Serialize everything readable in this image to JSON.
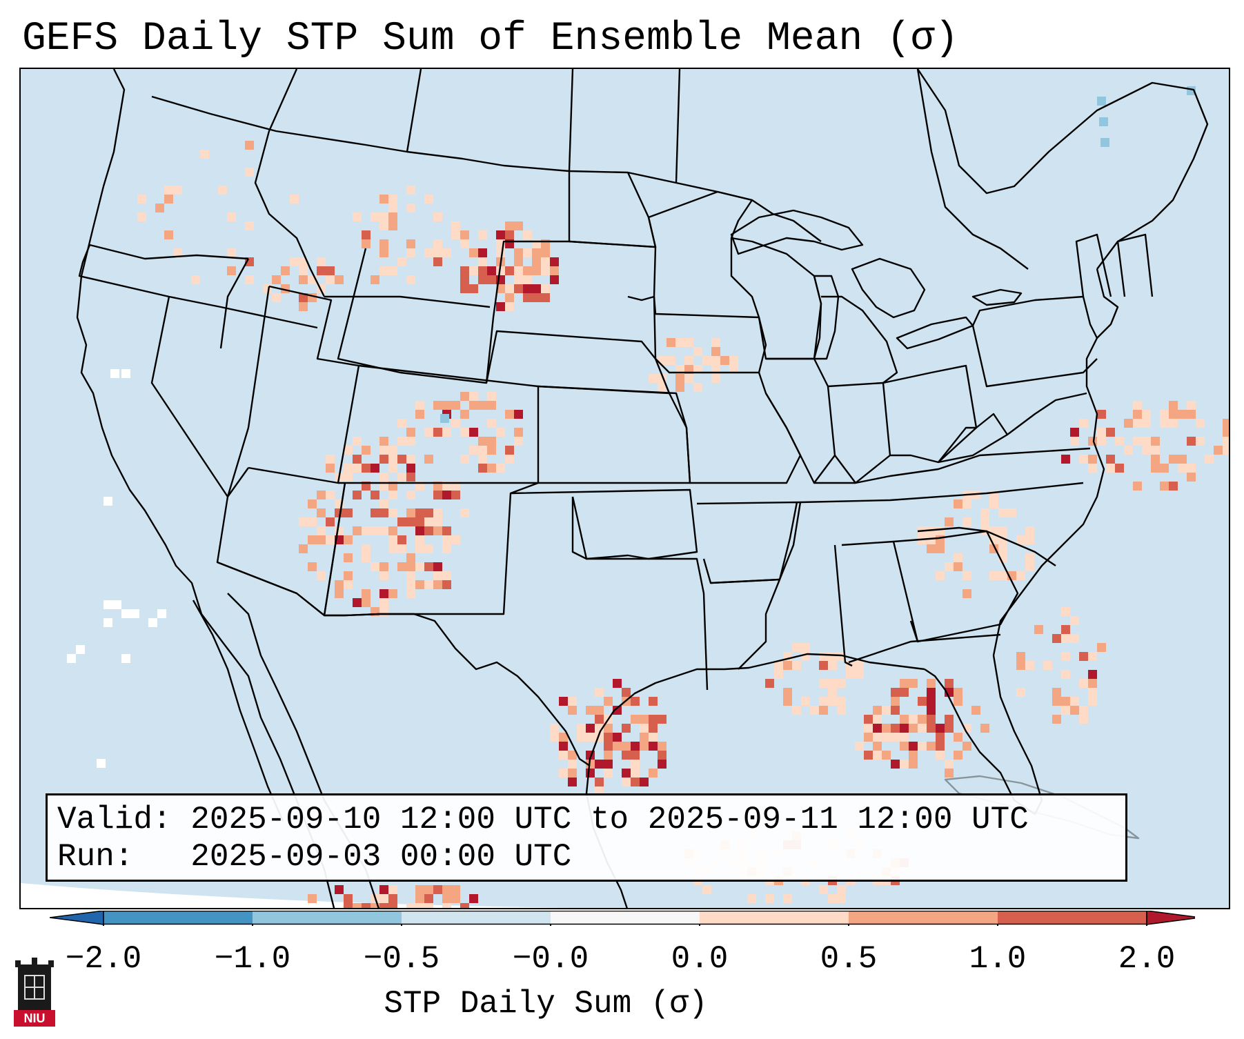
{
  "title": "GEFS Daily STP Sum of Ensemble Mean (σ)",
  "info": {
    "valid_label": "Valid:",
    "valid_value": "2025-09-10 12:00 UTC to 2025-09-11 12:00 UTC",
    "run_label": "Run:",
    "run_value": "2025-09-03 00:00 UTC"
  },
  "colorbar": {
    "label": "STP Daily Sum (σ)",
    "ticks": [
      "−2.0",
      "−1.0",
      "−0.5",
      "−0.0",
      "0.0",
      "0.5",
      "1.0",
      "2.0"
    ],
    "bins": [
      {
        "range": "below −2.0",
        "color": "#2166ac"
      },
      {
        "range": "−2.0 to −1.0",
        "color": "#4393c3"
      },
      {
        "range": "−1.0 to −0.5",
        "color": "#92c5de"
      },
      {
        "range": "−0.5 to −0.0",
        "color": "#d1e5f0"
      },
      {
        "range": "−0.0 to 0.0",
        "color": "#f7f7f7"
      },
      {
        "range": "0.0 to 0.5",
        "color": "#fddbc7"
      },
      {
        "range": "0.5 to 1.0",
        "color": "#f4a582"
      },
      {
        "range": "1.0 to 2.0",
        "color": "#d6604d"
      },
      {
        "range": "above 2.0",
        "color": "#b2182b"
      }
    ]
  },
  "logo": {
    "text": "NIU",
    "color": "#c8102e"
  }
}
